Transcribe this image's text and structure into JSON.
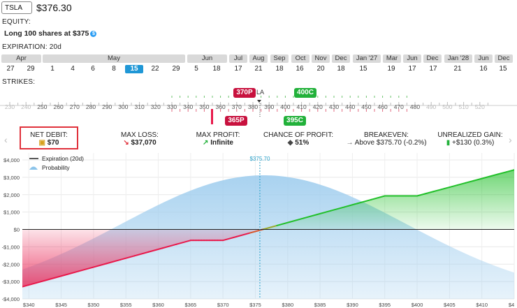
{
  "header": {
    "ticker": "TSLA",
    "price": "$376.30"
  },
  "equity": {
    "label": "EQUITY:",
    "position": "Long 100 shares at $375",
    "info_icon": "info-icon"
  },
  "expiration": {
    "label": "EXPIRATION: 20d",
    "months": [
      {
        "label": "Apr"
      },
      {
        "label": "May"
      },
      {
        "label": "Jun"
      },
      {
        "label": "Jul"
      },
      {
        "label": "Aug"
      },
      {
        "label": "Sep"
      },
      {
        "label": "Oct"
      },
      {
        "label": "Nov"
      },
      {
        "label": "Dec"
      },
      {
        "label": "Jan '27"
      },
      {
        "label": "Mar"
      },
      {
        "label": "Jun"
      },
      {
        "label": "Dec"
      },
      {
        "label": "Jan '28"
      },
      {
        "label": "Jun"
      },
      {
        "label": "Dec"
      }
    ],
    "days": [
      "27",
      "29",
      "1",
      "4",
      "6",
      "8",
      "15",
      "22",
      "29",
      "5",
      "18",
      "17",
      "21",
      "18",
      "16",
      "20",
      "18",
      "15",
      "19",
      "17",
      "17",
      "21",
      "16",
      "15"
    ],
    "selected_day_index": 6
  },
  "strikes": {
    "label": "STRIKES:",
    "values": [
      "230",
      "240",
      "250",
      "260",
      "270",
      "280",
      "290",
      "300",
      "310",
      "320",
      "330",
      "340",
      "350",
      "360",
      "370",
      "380",
      "390",
      "400",
      "410",
      "420",
      "430",
      "440",
      "450",
      "460",
      "470",
      "480",
      "490",
      "500",
      "510",
      "520"
    ],
    "badges": {
      "call_400": "400C",
      "put_370": "370P",
      "put_365": "365P",
      "call_395": "395C",
      "center_label": "LA"
    }
  },
  "stats": [
    {
      "title": "NET DEBIT:",
      "value": "$70",
      "icon": "wallet-icon"
    },
    {
      "title": "MAX LOSS:",
      "value": "$37,070",
      "icon": "arrow-down-right-icon"
    },
    {
      "title": "MAX PROFIT:",
      "value": "Infinite",
      "icon": "arrow-up-right-icon"
    },
    {
      "title": "CHANCE OF PROFIT:",
      "value": "51%",
      "icon": "dice-icon"
    },
    {
      "title": "BREAKEVEN:",
      "value": "Above $375.70 (-0.2%)",
      "icon": "arrow-right-icon"
    },
    {
      "title": "UNREALIZED GAIN:",
      "value": "+$130 (0.3%)",
      "icon": "money-icon"
    }
  ],
  "chart_data": {
    "type": "line",
    "legend": [
      {
        "name": "Expiration (20d)"
      },
      {
        "name": "Probability"
      }
    ],
    "breakeven_label": "$375.70",
    "x_ticks": [
      "$340",
      "$345",
      "$350",
      "$355",
      "$360",
      "$365",
      "$370",
      "$375",
      "$380",
      "$385",
      "$390",
      "$395",
      "$400",
      "$405",
      "$410",
      "$4"
    ],
    "y_ticks": [
      "$4,000",
      "$3,000",
      "$2,000",
      "$1,000",
      "$0",
      "-$1,000",
      "-$2,000",
      "-$3,000",
      "-$4,000"
    ],
    "xlim": [
      339,
      415
    ],
    "ylim": [
      -4000,
      4000
    ],
    "series": [
      {
        "name": "Expiration (20d)",
        "x": [
          339,
          365,
          370,
          395,
          400,
          415
        ],
        "y": [
          -3300,
          -630,
          -630,
          1930,
          1930,
          3430
        ]
      }
    ],
    "probability": {
      "mean": 376.3,
      "stdev": 22
    },
    "colors": {
      "loss": "#e8194b",
      "profit": "#22c02a",
      "probability": "#b7daf2",
      "breakeven": "#2aa0c8"
    }
  }
}
